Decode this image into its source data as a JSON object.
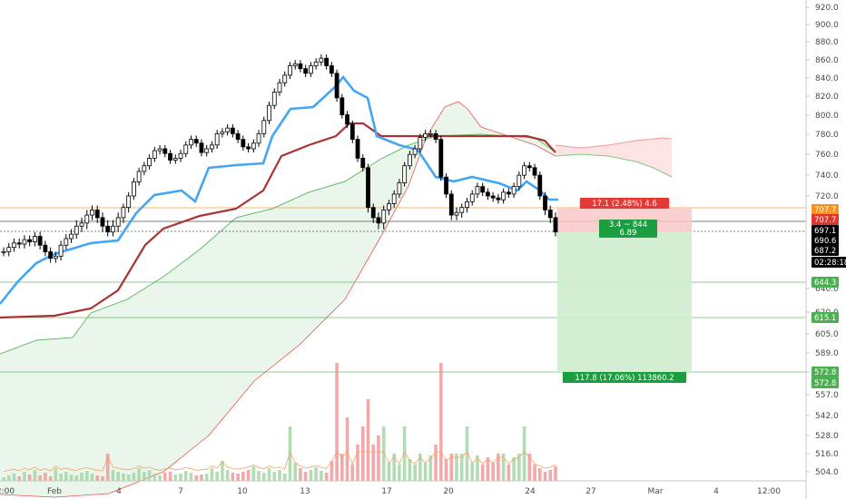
{
  "chart_data": {
    "type": "candlestick",
    "title": "",
    "xlabel": "",
    "ylabel": "",
    "y_axis_ticks": [
      "920.0",
      "900.0",
      "880.0",
      "860.0",
      "840.0",
      "820.0",
      "800.0",
      "780.0",
      "760.0",
      "740.0",
      "720.0",
      "640.0",
      "620.0",
      "605.0",
      "589.0",
      "573.0",
      "557.0",
      "542.0",
      "528.0",
      "516.0",
      "504.0"
    ],
    "x_axis_ticks": [
      "2:00",
      "Feb",
      "4",
      "7",
      "10",
      "13",
      "17",
      "20",
      "24",
      "27",
      "Mar",
      "4",
      "12:00"
    ],
    "price_labels": [
      {
        "value": "707.7",
        "color": "#f7931a"
      },
      {
        "value": "707.7",
        "color": "#e0362b"
      },
      {
        "value": "697.1",
        "color": "#000000"
      },
      {
        "value": "690.6",
        "color": "#000000"
      },
      {
        "value": "687.2",
        "color": "#000000"
      },
      {
        "value": "02:28:18",
        "color": "#000000"
      },
      {
        "value": "644.3",
        "color": "#4caf50"
      },
      {
        "value": "615.1",
        "color": "#4caf50"
      },
      {
        "value": "572.8",
        "color": "#4caf50"
      },
      {
        "value": "572.8",
        "color": "#4caf50"
      }
    ],
    "horizontal_levels": [
      707.7,
      697.1,
      690.6,
      644.3,
      615.1,
      572.8
    ],
    "position": {
      "entry": 690.6,
      "stop": 707.7,
      "target": 572.8,
      "risk_label": "17.1 (2.48%) 4.6",
      "ratio_label": "3.4 ~ 844",
      "ratio_value": "6.89",
      "reward_label": "117.8 (17.06%) 113860.2"
    },
    "price_series": [
      672,
      676,
      680,
      679,
      683,
      681,
      686,
      678,
      672,
      666,
      668,
      678,
      684,
      688,
      694,
      696,
      702,
      706,
      700,
      694,
      690,
      694,
      700,
      708,
      720,
      735,
      746,
      752,
      760,
      768,
      770,
      765,
      758,
      760,
      765,
      774,
      780,
      776,
      766,
      770,
      774,
      786,
      788,
      792,
      786,
      780,
      772,
      770,
      776,
      786,
      800,
      816,
      830,
      840,
      848,
      858,
      860,
      855,
      850,
      858,
      862,
      866,
      858,
      850,
      824,
      806,
      796,
      780,
      760,
      750,
      708,
      700,
      696,
      706,
      712,
      722,
      734,
      752,
      764,
      770,
      782,
      786,
      786,
      780,
      740,
      722,
      702,
      704,
      708,
      714,
      722,
      730,
      724,
      720,
      718,
      716,
      724,
      722,
      730,
      742,
      752,
      750,
      742,
      720,
      706,
      700,
      690
    ]
  }
}
